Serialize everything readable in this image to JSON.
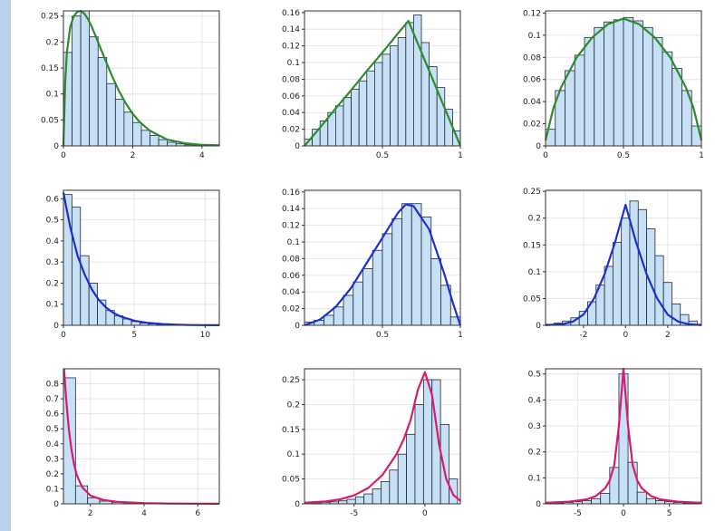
{
  "colors": {
    "background": "#b9d3ee",
    "bar_fill": "#c8e0f6",
    "bar_stroke": "#1b2a3a",
    "grid": "#e6e6e6"
  },
  "chart_data": [
    {
      "type": "bar",
      "title": "",
      "xlabel": "",
      "ylabel": "",
      "curve_color": "#2e8b2e",
      "xlim": [
        0,
        4.5
      ],
      "ylim": [
        0,
        0.26
      ],
      "xticks": [
        0,
        2,
        4
      ],
      "xtick_labels": [
        "0",
        "2",
        "4"
      ],
      "yticks": [
        0,
        0.05,
        0.1,
        0.15,
        0.2,
        0.25
      ],
      "ytick_labels": [
        "0",
        "0.05",
        "0.1",
        "0.15",
        "0.2",
        "0.25"
      ],
      "bins": {
        "start": 0,
        "width": 0.25,
        "values": [
          0.18,
          0.25,
          0.26,
          0.21,
          0.17,
          0.12,
          0.09,
          0.065,
          0.045,
          0.03,
          0.02,
          0.012,
          0.007,
          0.004,
          0.002,
          0.001,
          0.001,
          0,
          0
        ]
      },
      "curve": {
        "x": [
          0,
          0.05,
          0.1,
          0.2,
          0.3,
          0.4,
          0.5,
          0.6,
          0.7,
          0.8,
          1,
          1.2,
          1.4,
          1.6,
          1.8,
          2,
          2.2,
          2.5,
          3,
          3.5,
          4,
          4.5
        ],
        "y": [
          0,
          0.12,
          0.18,
          0.23,
          0.25,
          0.258,
          0.26,
          0.255,
          0.245,
          0.232,
          0.2,
          0.167,
          0.135,
          0.106,
          0.082,
          0.062,
          0.046,
          0.029,
          0.012,
          0.005,
          0.002,
          0.001
        ]
      }
    },
    {
      "type": "bar",
      "title": "",
      "xlabel": "",
      "ylabel": "",
      "curve_color": "#2e8b2e",
      "xlim": [
        0,
        1
      ],
      "ylim": [
        0,
        0.162
      ],
      "xticks": [
        0.5,
        1
      ],
      "xtick_labels": [
        "0.5",
        "1"
      ],
      "yticks": [
        0,
        0.02,
        0.04,
        0.06,
        0.08,
        0.1,
        0.12,
        0.14,
        0.16
      ],
      "ytick_labels": [
        "0",
        "0.02",
        "0.04",
        "0.06",
        "0.08",
        "0.1",
        "0.12",
        "0.14",
        "0.16"
      ],
      "bins": {
        "start": 0,
        "width": 0.05,
        "values": [
          0.008,
          0.02,
          0.03,
          0.04,
          0.048,
          0.058,
          0.068,
          0.078,
          0.09,
          0.1,
          0.11,
          0.12,
          0.13,
          0.148,
          0.157,
          0.124,
          0.095,
          0.07,
          0.044,
          0.018
        ]
      },
      "curve": {
        "x": [
          0,
          0.1,
          0.2,
          0.3,
          0.4,
          0.5,
          0.6,
          0.667,
          0.7,
          0.8,
          0.9,
          1
        ],
        "y": [
          0,
          0.022,
          0.045,
          0.067,
          0.09,
          0.112,
          0.135,
          0.15,
          0.135,
          0.09,
          0.045,
          0
        ]
      }
    },
    {
      "type": "bar",
      "title": "",
      "xlabel": "",
      "ylabel": "",
      "curve_color": "#2e8b2e",
      "xlim": [
        0,
        1
      ],
      "ylim": [
        0,
        0.122
      ],
      "xticks": [
        0,
        0.5,
        1
      ],
      "xtick_labels": [
        "0",
        "0.5",
        "1"
      ],
      "yticks": [
        0,
        0.02,
        0.04,
        0.06,
        0.08,
        0.1,
        0.12
      ],
      "ytick_labels": [
        "0",
        "0.02",
        "0.04",
        "0.06",
        "0.08",
        "0.1",
        "0.12"
      ],
      "bins": {
        "start": 0,
        "width": 0.0625,
        "values": [
          0.015,
          0.05,
          0.068,
          0.082,
          0.098,
          0.107,
          0.112,
          0.114,
          0.116,
          0.113,
          0.107,
          0.098,
          0.085,
          0.07,
          0.05,
          0.018
        ]
      },
      "curve": {
        "x": [
          0,
          0.05,
          0.1,
          0.2,
          0.3,
          0.4,
          0.5,
          0.6,
          0.7,
          0.8,
          0.9,
          0.95,
          1
        ],
        "y": [
          0.005,
          0.034,
          0.053,
          0.08,
          0.098,
          0.11,
          0.115,
          0.11,
          0.098,
          0.08,
          0.053,
          0.034,
          0.005
        ]
      }
    },
    {
      "type": "bar",
      "title": "",
      "xlabel": "",
      "ylabel": "",
      "curve_color": "#1f2fd0",
      "xlim": [
        0,
        11
      ],
      "ylim": [
        0,
        0.64
      ],
      "xticks": [
        0,
        5,
        10
      ],
      "xtick_labels": [
        "0",
        "5",
        "10"
      ],
      "yticks": [
        0,
        0.1,
        0.2,
        0.3,
        0.4,
        0.5,
        0.6
      ],
      "ytick_labels": [
        "0",
        "0.1",
        "0.2",
        "0.3",
        "0.4",
        "0.5",
        "0.6"
      ],
      "bins": {
        "start": 0,
        "width": 0.6,
        "values": [
          0.62,
          0.56,
          0.33,
          0.2,
          0.12,
          0.07,
          0.045,
          0.03,
          0.018,
          0.01,
          0.006,
          0.004,
          0.002,
          0.001,
          0.001,
          0,
          0,
          0
        ]
      },
      "curve": {
        "x": [
          0,
          0.2,
          0.5,
          1,
          1.5,
          2,
          2.5,
          3,
          3.5,
          4,
          5,
          6,
          7,
          8,
          9,
          10,
          11
        ],
        "y": [
          0.63,
          0.56,
          0.46,
          0.33,
          0.24,
          0.17,
          0.12,
          0.085,
          0.06,
          0.043,
          0.022,
          0.011,
          0.006,
          0.003,
          0.0015,
          0.001,
          0.0005
        ]
      }
    },
    {
      "type": "bar",
      "title": "",
      "xlabel": "",
      "ylabel": "",
      "curve_color": "#1f2fd0",
      "xlim": [
        0,
        1
      ],
      "ylim": [
        0,
        0.162
      ],
      "xticks": [
        0.5,
        1
      ],
      "xtick_labels": [
        "0.5",
        "1"
      ],
      "yticks": [
        0,
        0.02,
        0.04,
        0.06,
        0.08,
        0.1,
        0.12,
        0.14,
        0.16
      ],
      "ytick_labels": [
        "0",
        "0.02",
        "0.04",
        "0.06",
        "0.08",
        "0.1",
        "0.12",
        "0.14",
        "0.16"
      ],
      "bins": {
        "start": 0,
        "width": 0.0625,
        "values": [
          0.004,
          0.006,
          0.012,
          0.022,
          0.036,
          0.052,
          0.068,
          0.09,
          0.11,
          0.128,
          0.146,
          0.146,
          0.13,
          0.08,
          0.048,
          0.01
        ]
      },
      "curve": {
        "x": [
          0,
          0.1,
          0.2,
          0.3,
          0.4,
          0.5,
          0.6,
          0.65,
          0.7,
          0.8,
          0.9,
          0.95,
          1
        ],
        "y": [
          0,
          0.007,
          0.022,
          0.045,
          0.075,
          0.105,
          0.135,
          0.145,
          0.143,
          0.115,
          0.06,
          0.028,
          0
        ]
      }
    },
    {
      "type": "bar",
      "title": "",
      "xlabel": "",
      "ylabel": "",
      "curve_color": "#1f2fd0",
      "xlim": [
        -3.8,
        3.6
      ],
      "ylim": [
        0,
        0.252
      ],
      "xticks": [
        -2,
        0,
        2
      ],
      "xtick_labels": [
        "-2",
        "0",
        "2"
      ],
      "yticks": [
        0,
        0.05,
        0.1,
        0.15,
        0.2,
        0.25
      ],
      "ytick_labels": [
        "0",
        "0.05",
        "0.1",
        "0.15",
        "0.2",
        "0.25"
      ],
      "bins": {
        "start": -3.8,
        "width": 0.4,
        "values": [
          0.002,
          0.004,
          0.008,
          0.014,
          0.026,
          0.044,
          0.075,
          0.11,
          0.155,
          0.2,
          0.232,
          0.216,
          0.18,
          0.13,
          0.08,
          0.04,
          0.02,
          0.008,
          0.002
        ]
      },
      "curve": {
        "x": [
          -3.8,
          -3,
          -2.5,
          -2,
          -1.5,
          -1,
          -0.5,
          0,
          0.5,
          1,
          1.5,
          2,
          2.5,
          3,
          3.6
        ],
        "y": [
          0.0003,
          0.002,
          0.007,
          0.02,
          0.05,
          0.095,
          0.155,
          0.225,
          0.155,
          0.095,
          0.05,
          0.02,
          0.007,
          0.002,
          0.0003
        ]
      }
    },
    {
      "type": "bar",
      "title": "",
      "xlabel": "",
      "ylabel": "",
      "curve_color": "#d81b6a",
      "xlim": [
        1,
        6.8
      ],
      "ylim": [
        0,
        0.9
      ],
      "xticks": [
        2,
        4,
        6
      ],
      "xtick_labels": [
        "2",
        "4",
        "6"
      ],
      "yticks": [
        0,
        0.1,
        0.2,
        0.3,
        0.4,
        0.5,
        0.6,
        0.7,
        0.8
      ],
      "ytick_labels": [
        "0",
        "0.1",
        "0.2",
        "0.3",
        "0.4",
        "0.5",
        "0.6",
        "0.7",
        "0.8"
      ],
      "bins": {
        "start": 1,
        "width": 0.45,
        "values": [
          0.84,
          0.12,
          0.04,
          0.018,
          0.01,
          0.006,
          0.004,
          0.002,
          0.001,
          0.001,
          0,
          0,
          0
        ]
      },
      "curve": {
        "x": [
          1.02,
          1.1,
          1.2,
          1.3,
          1.4,
          1.5,
          1.7,
          2,
          2.5,
          3,
          4,
          5,
          6,
          6.8
        ],
        "y": [
          0.9,
          0.7,
          0.5,
          0.36,
          0.26,
          0.19,
          0.11,
          0.055,
          0.025,
          0.013,
          0.005,
          0.002,
          0.001,
          0.0005
        ]
      }
    },
    {
      "type": "bar",
      "title": "",
      "xlabel": "",
      "ylabel": "",
      "curve_color": "#d81b6a",
      "xlim": [
        -8.5,
        2.5
      ],
      "ylim": [
        0,
        0.272
      ],
      "xticks": [
        -5,
        0
      ],
      "xtick_labels": [
        "-5",
        "0"
      ],
      "yticks": [
        0,
        0.05,
        0.1,
        0.15,
        0.2,
        0.25
      ],
      "ytick_labels": [
        "0",
        "0.05",
        "0.1",
        "0.15",
        "0.2",
        "0.25"
      ],
      "bins": {
        "start": -8.5,
        "width": 0.6,
        "values": [
          0.001,
          0.002,
          0.003,
          0.004,
          0.006,
          0.009,
          0.014,
          0.02,
          0.03,
          0.045,
          0.068,
          0.1,
          0.14,
          0.2,
          0.25,
          0.25,
          0.16,
          0.05
        ]
      },
      "curve": {
        "x": [
          -8.5,
          -7,
          -6,
          -5,
          -4,
          -3,
          -2,
          -1.5,
          -1,
          -0.5,
          0,
          0.5,
          1,
          1.5,
          2,
          2.5
        ],
        "y": [
          0.002,
          0.005,
          0.009,
          0.017,
          0.032,
          0.058,
          0.1,
          0.13,
          0.17,
          0.23,
          0.265,
          0.22,
          0.12,
          0.05,
          0.018,
          0.006
        ]
      }
    },
    {
      "type": "bar",
      "title": "",
      "xlabel": "",
      "ylabel": "",
      "curve_color": "#d81b6a",
      "xlim": [
        -8.5,
        8.5
      ],
      "ylim": [
        0,
        0.52
      ],
      "xticks": [
        -5,
        0,
        5
      ],
      "xtick_labels": [
        "-5",
        "0",
        "5"
      ],
      "yticks": [
        0,
        0.1,
        0.2,
        0.3,
        0.4,
        0.5
      ],
      "ytick_labels": [
        "0",
        "0.1",
        "0.2",
        "0.3",
        "0.4",
        "0.5"
      ],
      "bins": {
        "start": -8.5,
        "width": 1,
        "values": [
          0.002,
          0.003,
          0.005,
          0.008,
          0.012,
          0.02,
          0.04,
          0.14,
          0.5,
          0.16,
          0.045,
          0.02,
          0.012,
          0.008,
          0.005,
          0.003,
          0.002
        ]
      },
      "curve": {
        "x": [
          -8.5,
          -6,
          -4,
          -3,
          -2,
          -1.5,
          -1,
          -0.5,
          0,
          0.5,
          1,
          1.5,
          2,
          3,
          4,
          6,
          8.5
        ],
        "y": [
          0.004,
          0.008,
          0.017,
          0.03,
          0.06,
          0.09,
          0.15,
          0.3,
          0.52,
          0.3,
          0.15,
          0.09,
          0.06,
          0.03,
          0.017,
          0.008,
          0.004
        ]
      }
    }
  ]
}
